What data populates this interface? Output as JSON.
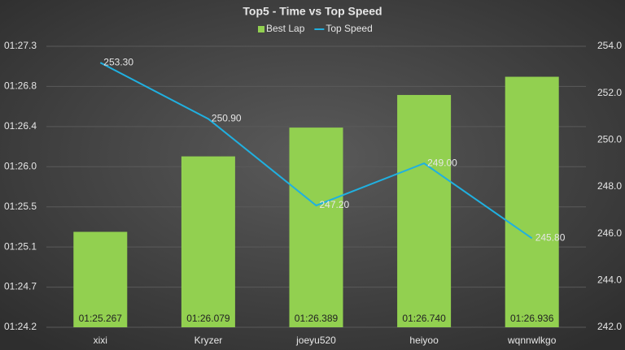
{
  "chart_data": {
    "type": "bar-line",
    "title": "Top5 - Time vs Top Speed",
    "categories": [
      "xixi",
      "Kryzer",
      "joeyu520",
      "heiyoo",
      "wqnnwlkgo"
    ],
    "series": [
      {
        "name": "Best Lap",
        "type": "bar",
        "color": "#92d050",
        "values": [
          85.267,
          86.079,
          86.389,
          86.74,
          86.936
        ],
        "value_labels": [
          "01:25.267",
          "01:26.079",
          "01:26.389",
          "01:26.740",
          "01:26.936"
        ]
      },
      {
        "name": "Top Speed",
        "type": "line",
        "axis": "y2",
        "color": "#20b0e0",
        "values": [
          253.3,
          250.9,
          247.2,
          249,
          245.8
        ],
        "value_labels": [
          "253.30",
          "250.90",
          "247.20",
          "249.00",
          "245.80"
        ]
      }
    ],
    "ylim": [
      84.24,
      87.264
    ],
    "yticks": [
      {
        "value": 84.24,
        "label": "01:24.2"
      },
      {
        "value": 84.672,
        "label": "01:24.7"
      },
      {
        "value": 85.104,
        "label": "01:25.1"
      },
      {
        "value": 85.536,
        "label": "01:25.5"
      },
      {
        "value": 85.968,
        "label": "01:26.0"
      },
      {
        "value": 86.4,
        "label": "01:26.4"
      },
      {
        "value": 86.832,
        "label": "01:26.8"
      },
      {
        "value": 87.264,
        "label": "01:27.3"
      }
    ],
    "y2lim": [
      242,
      254
    ],
    "y2ticks": [
      {
        "value": 242,
        "label": "242.0"
      },
      {
        "value": 244,
        "label": "244.0"
      },
      {
        "value": 246,
        "label": "246.0"
      },
      {
        "value": 248,
        "label": "248.0"
      },
      {
        "value": 250,
        "label": "250.0"
      },
      {
        "value": 252,
        "label": "252.0"
      },
      {
        "value": 254,
        "label": "254.0"
      }
    ],
    "grid": true,
    "legend": "top"
  }
}
